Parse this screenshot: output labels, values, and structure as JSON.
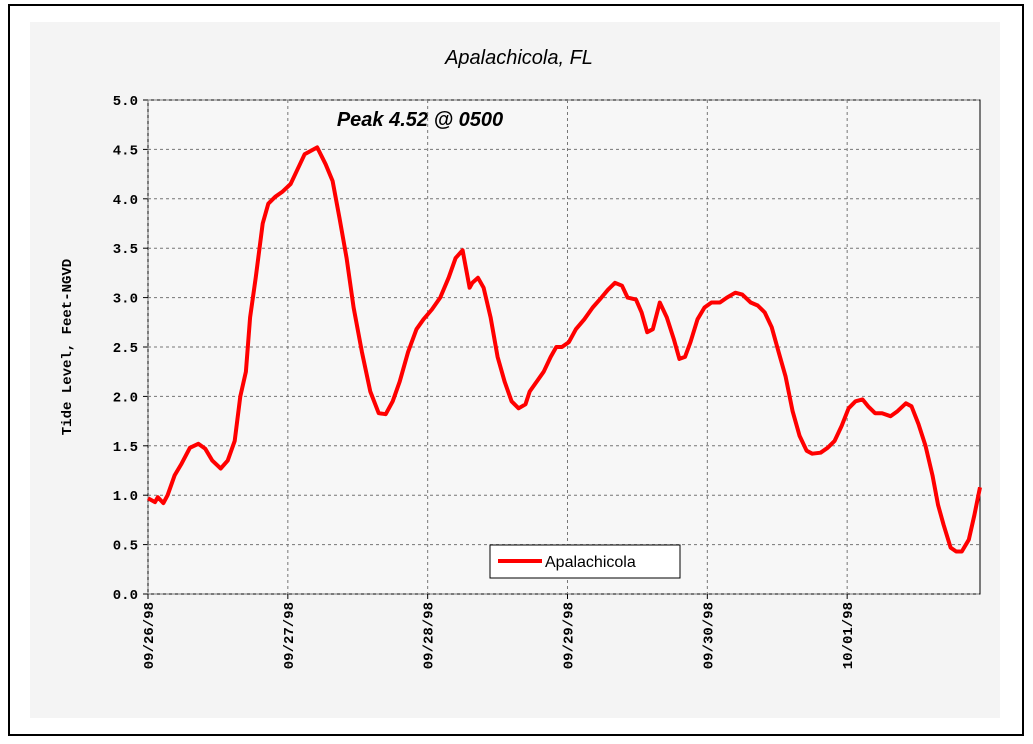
{
  "chart_data": {
    "type": "line",
    "title": "Apalachicola, FL",
    "annotation": "Peak 4.52 @ 0500",
    "y_label": "Tide Level, Feet-NGVD",
    "legend": "bottom-center",
    "grid": true,
    "xlim": [
      0,
      5.95
    ],
    "xticks": [
      {
        "value": 0,
        "label": "09/26/98"
      },
      {
        "value": 1,
        "label": "09/27/98"
      },
      {
        "value": 2,
        "label": "09/28/98"
      },
      {
        "value": 3,
        "label": "09/29/98"
      },
      {
        "value": 4,
        "label": "09/30/98"
      },
      {
        "value": 5,
        "label": "10/01/98"
      }
    ],
    "ylim": [
      0,
      5
    ],
    "yticks": [
      {
        "value": 0,
        "label": "0.0"
      },
      0.5,
      {
        "value": 1,
        "label": "1.0"
      },
      1.5,
      {
        "value": 2,
        "label": "2.0"
      },
      2.5,
      {
        "value": 3,
        "label": "3.0"
      },
      3.5,
      {
        "value": 4,
        "label": "4.0"
      },
      4.5,
      {
        "value": 5,
        "label": "5.0"
      }
    ],
    "series": [
      {
        "name": "Apalachicola",
        "color": "#ff0000",
        "x": [
          0,
          0.05,
          0.07,
          0.11,
          0.14,
          0.19,
          0.24,
          0.3,
          0.36,
          0.41,
          0.46,
          0.52,
          0.57,
          0.62,
          0.66,
          0.7,
          0.73,
          0.77,
          0.82,
          0.86,
          0.91,
          0.96,
          1.02,
          1.07,
          1.12,
          1.21,
          1.27,
          1.32,
          1.37,
          1.42,
          1.47,
          1.53,
          1.59,
          1.65,
          1.7,
          1.75,
          1.8,
          1.86,
          1.92,
          1.97,
          2.03,
          2.09,
          2.15,
          2.2,
          2.25,
          2.3,
          2.32,
          2.36,
          2.4,
          2.45,
          2.5,
          2.55,
          2.6,
          2.65,
          2.7,
          2.73,
          2.78,
          2.83,
          2.88,
          2.92,
          2.96,
          3.01,
          3.06,
          3.12,
          3.18,
          3.23,
          3.29,
          3.34,
          3.39,
          3.43,
          3.49,
          3.53,
          3.57,
          3.61,
          3.66,
          3.71,
          3.76,
          3.8,
          3.84,
          3.88,
          3.93,
          3.98,
          4.03,
          4.09,
          4.14,
          4.2,
          4.25,
          4.31,
          4.36,
          4.41,
          4.46,
          4.51,
          4.56,
          4.61,
          4.66,
          4.71,
          4.75,
          4.81,
          4.86,
          4.91,
          4.96,
          5.01,
          5.06,
          5.11,
          5.15,
          5.2,
          5.25,
          5.31,
          5.36,
          5.42,
          5.46,
          5.51,
          5.56,
          5.61,
          5.65,
          5.69,
          5.74,
          5.78,
          5.82,
          5.87,
          5.91,
          5.95
        ],
        "values": [
          0.97,
          0.93,
          0.98,
          0.92,
          1.0,
          1.2,
          1.32,
          1.48,
          1.52,
          1.47,
          1.35,
          1.27,
          1.35,
          1.55,
          2.0,
          2.25,
          2.8,
          3.2,
          3.75,
          3.95,
          4.02,
          4.07,
          4.15,
          4.3,
          4.45,
          4.52,
          4.35,
          4.18,
          3.8,
          3.4,
          2.9,
          2.45,
          2.05,
          1.83,
          1.82,
          1.95,
          2.15,
          2.45,
          2.68,
          2.78,
          2.88,
          3.0,
          3.2,
          3.4,
          3.48,
          3.1,
          3.15,
          3.2,
          3.1,
          2.8,
          2.4,
          2.15,
          1.95,
          1.88,
          1.92,
          2.05,
          2.15,
          2.25,
          2.4,
          2.5,
          2.5,
          2.55,
          2.68,
          2.78,
          2.9,
          2.98,
          3.08,
          3.15,
          3.12,
          3.0,
          2.98,
          2.85,
          2.65,
          2.68,
          2.95,
          2.8,
          2.58,
          2.38,
          2.4,
          2.55,
          2.78,
          2.9,
          2.95,
          2.95,
          3.0,
          3.05,
          3.03,
          2.95,
          2.92,
          2.85,
          2.7,
          2.45,
          2.2,
          1.85,
          1.6,
          1.45,
          1.42,
          1.43,
          1.48,
          1.55,
          1.7,
          1.88,
          1.95,
          1.97,
          1.9,
          1.83,
          1.83,
          1.8,
          1.85,
          1.93,
          1.9,
          1.72,
          1.5,
          1.2,
          0.9,
          0.7,
          0.47,
          0.43,
          0.43,
          0.55,
          0.8,
          1.08
        ]
      }
    ]
  }
}
